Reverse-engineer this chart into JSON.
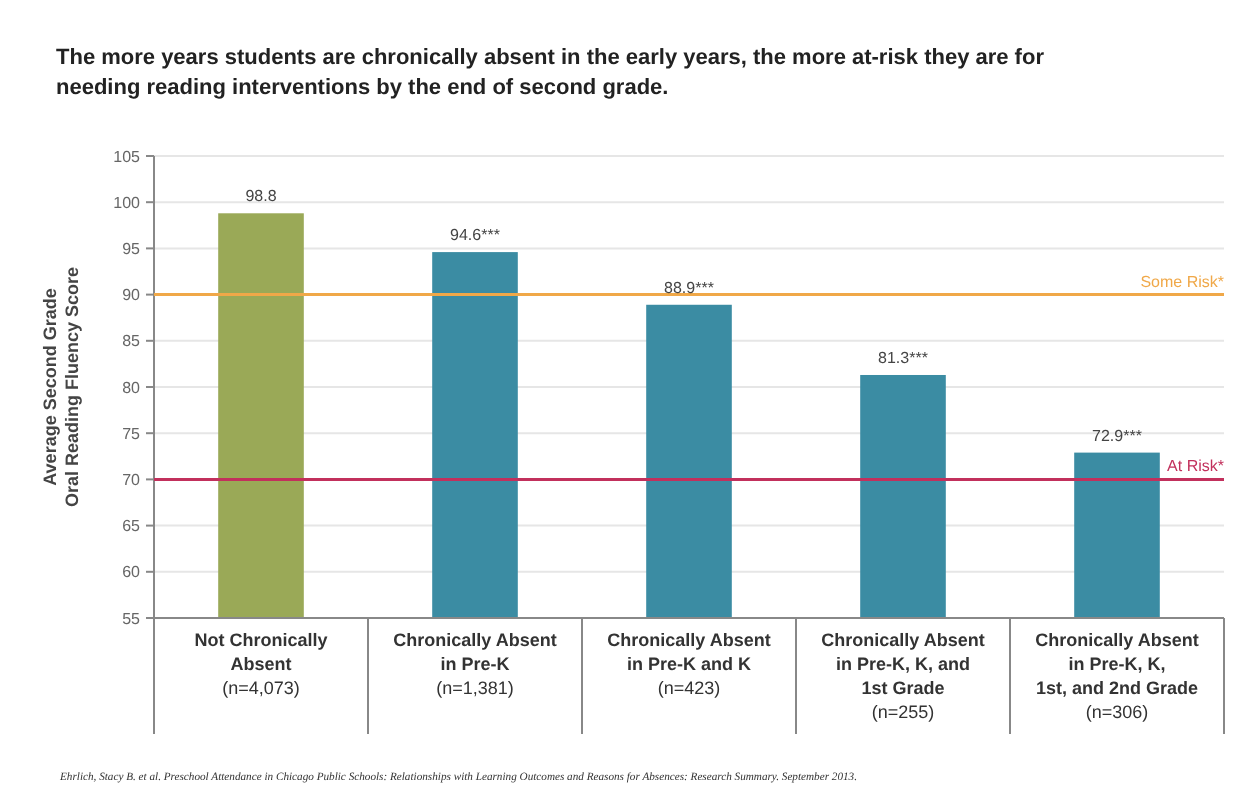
{
  "chart_data": {
    "type": "bar",
    "title": "The more years students are chronically absent in the early years, the more at-risk they are for needing reading interventions by the end of second grade.",
    "ylabel": "Average Second Grade\nOral Reading Fluency Score",
    "categories": [
      "Not Chronically\nAbsent\n(n=4,073)",
      "Chronically Absent\nin Pre-K\n(n=1,381)",
      "Chronically Absent\nin Pre-K and K\n(n=423)",
      "Chronically Absent\nin Pre-K, K, and\n1st Grade\n(n=255)",
      "Chronically Absent\nin Pre-K, K,\n1st, and 2nd Grade\n(n=306)"
    ],
    "values": [
      98.8,
      94.6,
      88.9,
      81.3,
      72.9
    ],
    "colors": [
      "#9aa957",
      "#3b8ca3",
      "#3b8ca3",
      "#3b8ca3",
      "#3b8ca3"
    ],
    "value_labels": [
      "98.8",
      "94.6***",
      "88.9***",
      "81.3***",
      "72.9***"
    ],
    "ylim": [
      55,
      105
    ],
    "yticks": [
      55,
      60,
      65,
      70,
      75,
      80,
      85,
      90,
      95,
      100,
      105
    ],
    "grid": "y",
    "ref_lines": [
      {
        "axis": "y",
        "value": 90,
        "label": "Some Risk*",
        "color": "#f0a848"
      },
      {
        "axis": "y",
        "value": 70,
        "label": "At Risk*",
        "color": "#c2305c"
      }
    ],
    "annotations": [
      "Ehrlich, Stacy B. et al. Preschool Attendance in Chicago Public Schools: Relationships with Learning Outcomes and Reasons for Absences: Research Summary. September 2013."
    ]
  }
}
